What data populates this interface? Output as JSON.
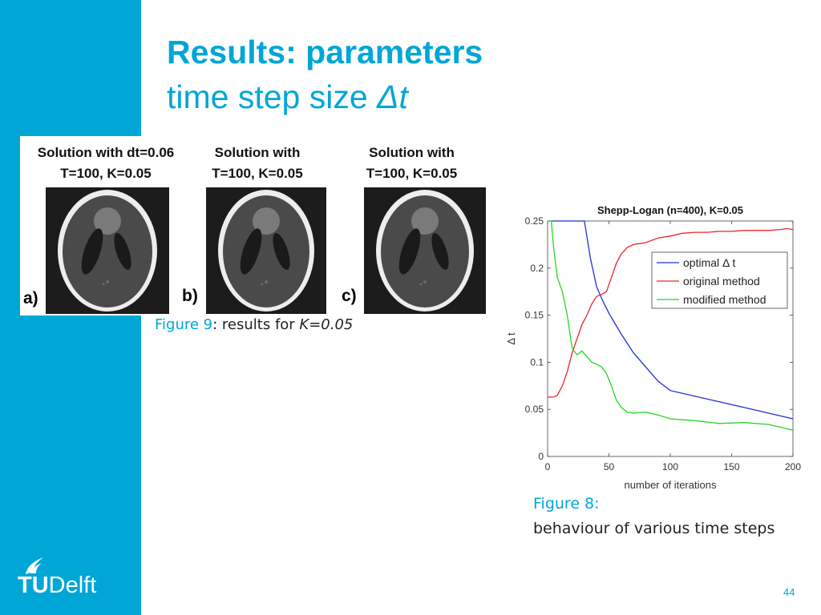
{
  "slide": {
    "title": "Results: parameters",
    "subtitle_text": "time step size ",
    "subtitle_symbol": "Δt",
    "page_number": "44"
  },
  "logo": {
    "tu": "TU",
    "delft": "Delft"
  },
  "panels": [
    {
      "line1": "Solution with dt=0.06",
      "line2": "T=100, K=0.05",
      "label": "a)"
    },
    {
      "line1": "Solution with",
      "line2": "T=100, K=0.05",
      "label": "b)"
    },
    {
      "line1": "Solution with",
      "line2": "T=100, K=0.05",
      "label": "c)"
    }
  ],
  "figure9": {
    "prefix": "Figure 9",
    "text": ": results for ",
    "param": "K=0.05"
  },
  "figure8": {
    "line1": "Figure 8:",
    "line2": "behaviour of various time steps"
  },
  "colors": {
    "accent": "#00a6d6",
    "optimal": "#1f2fd6",
    "original": "#e8262b",
    "modified": "#22d822"
  },
  "chart_data": {
    "type": "line",
    "title": "Shepp-Logan (n=400), K=0.05",
    "xlabel": "number of iterations",
    "ylabel": "Δ t",
    "xlim": [
      0,
      200
    ],
    "ylim": [
      0,
      0.25
    ],
    "xticks": [
      0,
      50,
      100,
      150,
      200
    ],
    "yticks": [
      0,
      0.05,
      0.1,
      0.15,
      0.2,
      0.25
    ],
    "xtick_labels": [
      "0",
      "50",
      "100",
      "150",
      "200"
    ],
    "ytick_labels": [
      "0",
      "0.05",
      "0.1",
      "0.15",
      "0.2",
      "0.25"
    ],
    "legend_position": "top-right",
    "grid": false,
    "series": [
      {
        "name": "optimal  Δ  t",
        "color": "#1f2fd6",
        "x": [
          0,
          5,
          30,
          35,
          40,
          45,
          50,
          60,
          70,
          80,
          90,
          100,
          120,
          140,
          160,
          180,
          200
        ],
        "y": [
          0.25,
          0.25,
          0.25,
          0.21,
          0.18,
          0.165,
          0.152,
          0.13,
          0.11,
          0.095,
          0.08,
          0.07,
          0.064,
          0.058,
          0.052,
          0.046,
          0.04
        ]
      },
      {
        "name": "original method",
        "color": "#e8262b",
        "x": [
          0,
          5,
          8,
          12,
          16,
          20,
          24,
          28,
          32,
          36,
          40,
          44,
          48,
          52,
          56,
          60,
          65,
          70,
          75,
          80,
          90,
          100,
          110,
          120,
          130,
          140,
          150,
          160,
          170,
          180,
          190,
          195,
          200
        ],
        "y": [
          0.063,
          0.063,
          0.065,
          0.075,
          0.09,
          0.11,
          0.125,
          0.14,
          0.15,
          0.162,
          0.17,
          0.172,
          0.175,
          0.19,
          0.205,
          0.215,
          0.222,
          0.225,
          0.226,
          0.227,
          0.232,
          0.234,
          0.237,
          0.238,
          0.238,
          0.239,
          0.239,
          0.24,
          0.24,
          0.24,
          0.241,
          0.242,
          0.241
        ]
      },
      {
        "name": "modified method",
        "color": "#22d822",
        "x": [
          0,
          3,
          5,
          8,
          12,
          16,
          20,
          24,
          28,
          32,
          36,
          40,
          44,
          48,
          52,
          56,
          60,
          65,
          70,
          80,
          90,
          100,
          120,
          140,
          160,
          180,
          200
        ],
        "y": [
          0.25,
          0.25,
          0.22,
          0.19,
          0.175,
          0.15,
          0.115,
          0.108,
          0.112,
          0.106,
          0.1,
          0.098,
          0.095,
          0.088,
          0.075,
          0.06,
          0.052,
          0.047,
          0.046,
          0.047,
          0.044,
          0.04,
          0.038,
          0.035,
          0.036,
          0.034,
          0.028
        ]
      }
    ]
  }
}
